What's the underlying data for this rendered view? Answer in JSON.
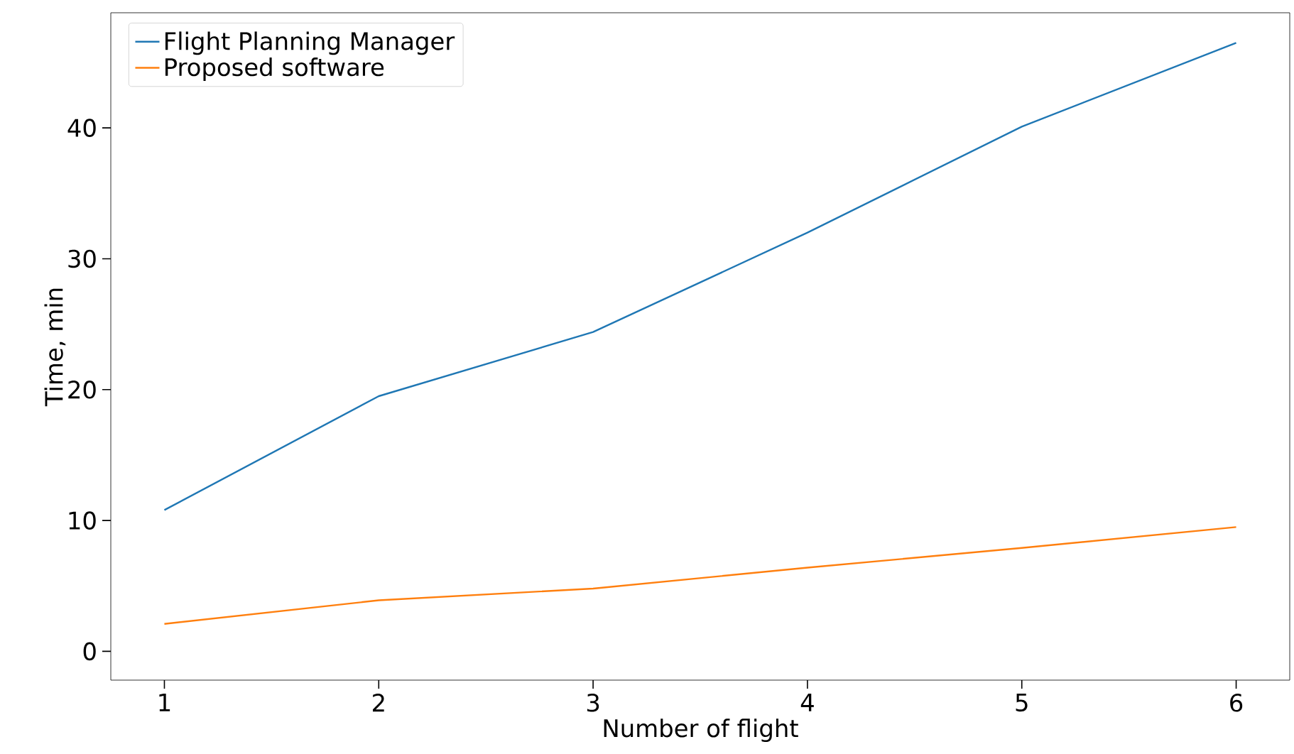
{
  "chart_data": {
    "type": "line",
    "xlabel": "Number of flight",
    "ylabel": "Time, min",
    "x": [
      1,
      2,
      3,
      4,
      5,
      6
    ],
    "series": [
      {
        "name": "Flight Planning Manager",
        "color": "#1f77b4",
        "values": [
          10.8,
          19.5,
          24.4,
          32.0,
          40.1,
          46.5
        ]
      },
      {
        "name": "Proposed software",
        "color": "#ff7f0e",
        "values": [
          2.1,
          3.9,
          4.8,
          6.4,
          7.9,
          9.5
        ]
      }
    ],
    "xlim": [
      0.75,
      6.25
    ],
    "ylim": [
      -2.2,
      48.8
    ],
    "xticks": [
      1,
      2,
      3,
      4,
      5,
      6
    ],
    "yticks": [
      0,
      10,
      20,
      30,
      40
    ],
    "legend": "top left",
    "grid": false,
    "marker": "none",
    "line_style": "solid"
  }
}
